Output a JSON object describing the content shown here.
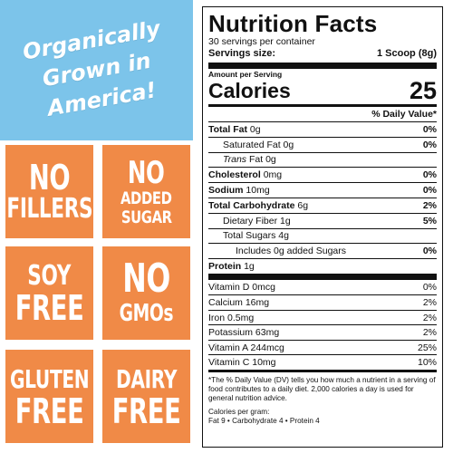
{
  "banner": {
    "lines": [
      "Organically",
      "Grown in",
      "America!"
    ]
  },
  "badges": [
    {
      "top": "NO",
      "bottom": "FILLERS"
    },
    {
      "top": "NO",
      "middle": "ADDED",
      "bottom": "SUGAR"
    },
    {
      "top": "SOY",
      "bottom": "FREE"
    },
    {
      "top": "NO",
      "bottom": "GMOs"
    },
    {
      "top": "GLUTEN",
      "bottom": "FREE"
    },
    {
      "top": "DAIRY",
      "bottom": "FREE"
    }
  ],
  "colors": {
    "banner": "#7cc4ea",
    "badge": "#f08a47"
  },
  "nutrition": {
    "title": "Nutrition Facts",
    "servings_per_container": "30 servings per container",
    "serving_size_label": "Servings size:",
    "serving_size_value": "1 Scoop (8g)",
    "amount_per_serving": "Amount per Serving",
    "calories_label": "Calories",
    "calories_value": "25",
    "dv_header": "% Daily Value*",
    "rows": [
      {
        "label": "Total Fat",
        "amount": "0g",
        "dv": "0%"
      },
      {
        "label": "Saturated Fat",
        "amount": "0g",
        "dv": "0%"
      },
      {
        "label_italic": "Trans",
        "label": "Fat",
        "amount": "0g",
        "dv": ""
      },
      {
        "label": "Cholesterol",
        "amount": "0mg",
        "dv": "0%"
      },
      {
        "label": "Sodium",
        "amount": "10mg",
        "dv": "0%"
      },
      {
        "label": "Total Carbohydrate",
        "amount": "6g",
        "dv": "2%"
      },
      {
        "label": "Dietary Fiber",
        "amount": "1g",
        "dv": "5%"
      },
      {
        "label": "Total Sugars",
        "amount": "4g",
        "dv": ""
      },
      {
        "label": "Includes 0g added Sugars",
        "amount": "",
        "dv": "0%"
      },
      {
        "label": "Protein",
        "amount": "1g",
        "dv": ""
      }
    ],
    "vitamins": [
      {
        "label": "Vitamin D 0mcg",
        "dv": "0%"
      },
      {
        "label": "Calcium 16mg",
        "dv": "2%"
      },
      {
        "label": "Iron 0.5mg",
        "dv": "2%"
      },
      {
        "label": "Potassium 63mg",
        "dv": "2%"
      },
      {
        "label": "Vitamin A 244mcg",
        "dv": "25%"
      },
      {
        "label": "Vitamin C 10mg",
        "dv": "10%"
      }
    ],
    "footnote": "*The % Daily Value (DV) tells you how much a nutrient in a serving of food contributes to a daily diet. 2,000 calories a day is used for general nutrition advice.",
    "calories_per_gram_label": "Calories per gram:",
    "calories_per_gram_values": "Fat 9 • Carbohydrate 4 • Protein 4"
  }
}
